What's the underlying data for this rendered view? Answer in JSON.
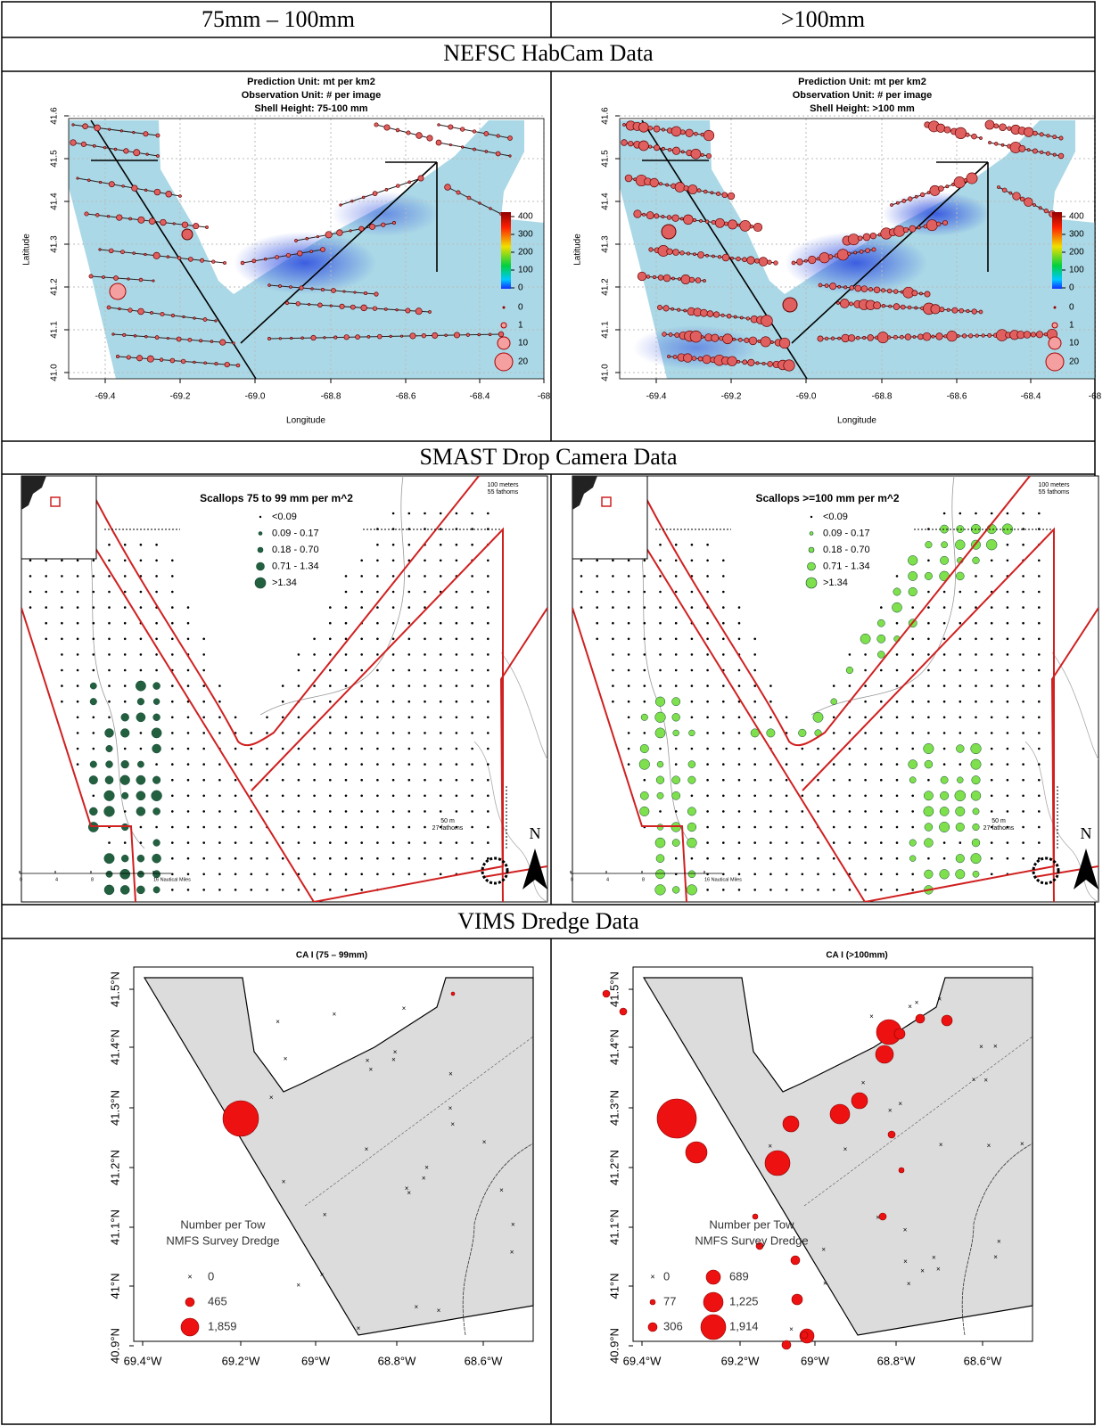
{
  "table": {
    "header": [
      "75mm – 100mm",
      ">100mm"
    ],
    "sections": [
      {
        "title": "NEFSC HabCam Data",
        "panels": [
          {
            "title_lines": [
              "Prediction Unit: mt per km2",
              "Observation Unit: # per image",
              "Shell Height: 75-100 mm"
            ]
          },
          {
            "title_lines": [
              "Prediction Unit: mt per km2",
              "Observation Unit: # per image",
              "Shell Height: >100 mm"
            ]
          }
        ],
        "x_axis_label": "Longitude",
        "y_axis_label": "Latitude",
        "x_ticks": [
          "-69.4",
          "-69.2",
          "-69.0",
          "-68.8",
          "-68.6",
          "-68.4",
          "-68"
        ],
        "y_ticks": [
          "41.0",
          "41.1",
          "41.2",
          "41.3",
          "41.4",
          "41.5",
          "41.6"
        ],
        "colorbar_ticks": [
          "0",
          "100",
          "200",
          "300",
          "400"
        ],
        "bubble_legend": [
          "0",
          "1",
          "10",
          "20"
        ]
      },
      {
        "title": "SMAST Drop Camera Data",
        "panels": [
          {
            "legend_title": "Scallops 75 to 99 mm per m^2"
          },
          {
            "legend_title": "Scallops >=100  mm per m^2"
          }
        ],
        "legend_classes": [
          "<0.09",
          "0.09 - 0.17",
          "0.18 - 0.70",
          "0.71 - 1.34",
          ">1.34"
        ],
        "contour_100": [
          "100 meters",
          "55 fathoms"
        ],
        "contour_50": [
          "50 m",
          "27 fathoms"
        ],
        "north": "N",
        "scale_bar": [
          "0",
          "4",
          "8",
          "16 Nautical Miles"
        ]
      },
      {
        "title": "VIMS Dredge Data",
        "panels": [
          {
            "title": "CA I (75 – 99mm)",
            "legend_values": [
              "0",
              "465",
              "1,859"
            ]
          },
          {
            "title": "CA I (>100mm)",
            "legend_values": [
              "0",
              "77",
              "306",
              "689",
              "1,225",
              "1,914"
            ]
          }
        ],
        "legend_title": [
          "Number per Tow",
          "NMFS Survey Dredge"
        ],
        "x_ticks": [
          "69.4°W",
          "69.2°W",
          "69°W",
          "68.8°W",
          "68.6°W"
        ],
        "y_ticks": [
          "41.5°N",
          "41.4°N",
          "41.3°N",
          "41.2°N",
          "41.1°N",
          "41°N",
          "40.9°N"
        ]
      }
    ]
  }
}
